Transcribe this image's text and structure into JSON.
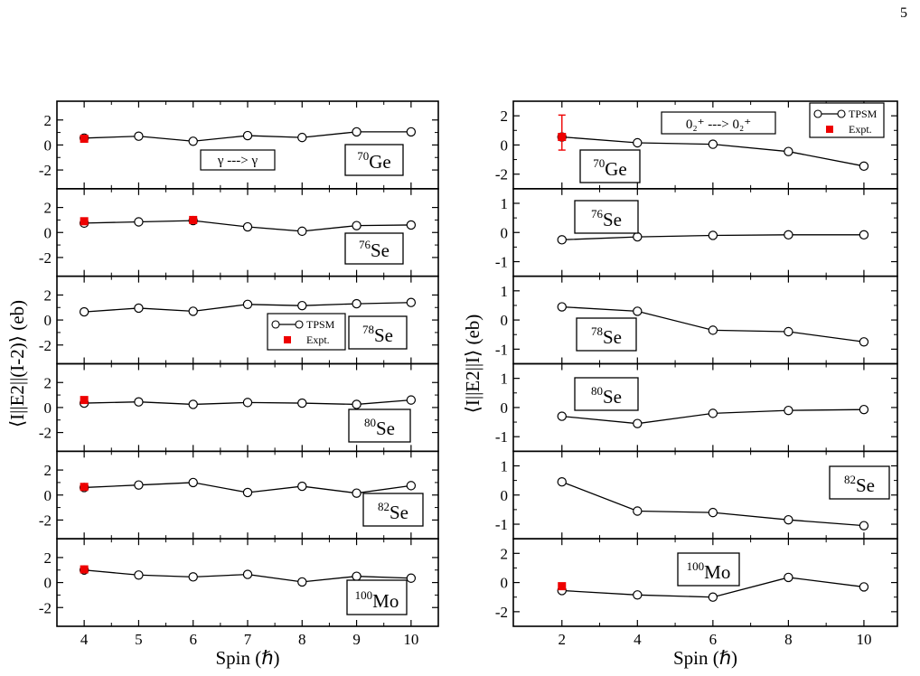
{
  "page_number": "5",
  "colors": {
    "tpsm": "#000000",
    "expt": "#ee0000"
  },
  "chart_data": [
    {
      "type": "line",
      "ylabel": "⟨I||E2||(I-2)⟩ (eb)",
      "xlabel": "Spin (ℏ)",
      "xlim": [
        3.5,
        10.5
      ],
      "xticks": [
        4,
        5,
        6,
        7,
        8,
        9,
        10
      ],
      "panels": [
        {
          "nucleus_mass": "70",
          "nucleus_symbol": "Ge",
          "ylim": [
            -3.5,
            3.5
          ],
          "yticks": [
            -2,
            0,
            2
          ],
          "annotation": "γ ---> γ",
          "tpsm": {
            "x": [
              4,
              5,
              6,
              7,
              8,
              9,
              10
            ],
            "y": [
              0.55,
              0.7,
              0.3,
              0.75,
              0.6,
              1.05,
              1.05
            ]
          },
          "expt": [
            {
              "x": 4,
              "y": 0.5,
              "err": 0.2
            }
          ]
        },
        {
          "nucleus_mass": "76",
          "nucleus_symbol": "Se",
          "ylim": [
            -3.5,
            3.5
          ],
          "yticks": [
            -2,
            0,
            2
          ],
          "tpsm": {
            "x": [
              4,
              5,
              6,
              7,
              8,
              9,
              10
            ],
            "y": [
              0.75,
              0.85,
              0.95,
              0.45,
              0.1,
              0.55,
              0.6
            ]
          },
          "expt": [
            {
              "x": 4,
              "y": 0.9,
              "err": 0.15
            },
            {
              "x": 6,
              "y": 1.0,
              "err": 0.15
            }
          ]
        },
        {
          "nucleus_mass": "78",
          "nucleus_symbol": "Se",
          "ylim": [
            -3.5,
            3.5
          ],
          "yticks": [
            -2,
            0,
            2
          ],
          "legend": {
            "tpsm": "TPSM",
            "expt": "Expt."
          },
          "tpsm": {
            "x": [
              4,
              5,
              6,
              7,
              8,
              9,
              10
            ],
            "y": [
              0.65,
              0.95,
              0.7,
              1.25,
              1.15,
              1.3,
              1.4
            ]
          },
          "expt": []
        },
        {
          "nucleus_mass": "80",
          "nucleus_symbol": "Se",
          "ylim": [
            -3.5,
            3.5
          ],
          "yticks": [
            -2,
            0,
            2
          ],
          "tpsm": {
            "x": [
              4,
              5,
              6,
              7,
              8,
              9,
              10
            ],
            "y": [
              0.35,
              0.45,
              0.25,
              0.4,
              0.35,
              0.25,
              0.6
            ]
          },
          "expt": [
            {
              "x": 4,
              "y": 0.6,
              "err": 0.2
            }
          ]
        },
        {
          "nucleus_mass": "82",
          "nucleus_symbol": "Se",
          "ylim": [
            -3.5,
            3.5
          ],
          "yticks": [
            -2,
            0,
            2
          ],
          "tpsm": {
            "x": [
              4,
              5,
              6,
              7,
              8,
              9,
              10
            ],
            "y": [
              0.6,
              0.8,
              1.0,
              0.2,
              0.7,
              0.15,
              0.75
            ]
          },
          "expt": [
            {
              "x": 4,
              "y": 0.65,
              "err": 0.15
            }
          ]
        },
        {
          "nucleus_mass": "100",
          "nucleus_symbol": "Mo",
          "ylim": [
            -3.5,
            3.5
          ],
          "yticks": [
            -2,
            0,
            2
          ],
          "tpsm": {
            "x": [
              4,
              5,
              6,
              7,
              8,
              9,
              10
            ],
            "y": [
              1.0,
              0.6,
              0.45,
              0.65,
              0.05,
              0.5,
              0.35
            ]
          },
          "expt": [
            {
              "x": 4,
              "y": 1.05,
              "err": 0.15
            }
          ]
        }
      ]
    },
    {
      "type": "line",
      "ylabel": "⟨I||E2||I⟩ (eb)",
      "xlabel": "Spin (ℏ)",
      "xlim": [
        1,
        10.6
      ],
      "xticks": [
        2,
        4,
        6,
        8,
        10
      ],
      "panels": [
        {
          "nucleus_mass": "70",
          "nucleus_symbol": "Ge",
          "ylim": [
            -3,
            3
          ],
          "yticks": [
            -2,
            0,
            2
          ],
          "annotation": "0₂⁺ ---> 0₂⁺",
          "legend": {
            "tpsm": "TPSM",
            "expt": "Expt."
          },
          "tpsm": {
            "x": [
              2,
              4,
              6,
              8,
              10
            ],
            "y": [
              0.55,
              0.15,
              0.05,
              -0.45,
              -1.45
            ]
          },
          "expt": [
            {
              "x": 2,
              "y": 0.55,
              "err": 0.9,
              "err_hi": 1.5
            }
          ]
        },
        {
          "nucleus_mass": "76",
          "nucleus_symbol": "Se",
          "ylim": [
            -1.5,
            1.5
          ],
          "yticks": [
            -1,
            0,
            1
          ],
          "tpsm": {
            "x": [
              2,
              4,
              6,
              8,
              10
            ],
            "y": [
              -0.25,
              -0.15,
              -0.1,
              -0.08,
              -0.08
            ]
          },
          "expt": []
        },
        {
          "nucleus_mass": "78",
          "nucleus_symbol": "Se",
          "ylim": [
            -1.5,
            1.5
          ],
          "yticks": [
            -1,
            0,
            1
          ],
          "tpsm": {
            "x": [
              2,
              4,
              6,
              8,
              10
            ],
            "y": [
              0.45,
              0.3,
              -0.35,
              -0.4,
              -0.75
            ]
          },
          "expt": []
        },
        {
          "nucleus_mass": "80",
          "nucleus_symbol": "Se",
          "ylim": [
            -1.5,
            1.5
          ],
          "yticks": [
            -1,
            0,
            1
          ],
          "tpsm": {
            "x": [
              2,
              4,
              6,
              8,
              10
            ],
            "y": [
              -0.3,
              -0.55,
              -0.2,
              -0.1,
              -0.07
            ]
          },
          "expt": []
        },
        {
          "nucleus_mass": "82",
          "nucleus_symbol": "Se",
          "ylim": [
            -1.5,
            1.5
          ],
          "yticks": [
            -1,
            0,
            1
          ],
          "tpsm": {
            "x": [
              2,
              4,
              6,
              8,
              10
            ],
            "y": [
              0.45,
              -0.55,
              -0.6,
              -0.85,
              -1.05
            ]
          },
          "expt": []
        },
        {
          "nucleus_mass": "100",
          "nucleus_symbol": "Mo",
          "ylim": [
            -3,
            3
          ],
          "yticks": [
            -2,
            0,
            2
          ],
          "tpsm": {
            "x": [
              2,
              4,
              6,
              8,
              10
            ],
            "y": [
              -0.55,
              -0.85,
              -1.0,
              0.35,
              -0.3
            ]
          },
          "expt": [
            {
              "x": 2,
              "y": -0.25,
              "err": 0.2
            }
          ]
        }
      ]
    }
  ]
}
